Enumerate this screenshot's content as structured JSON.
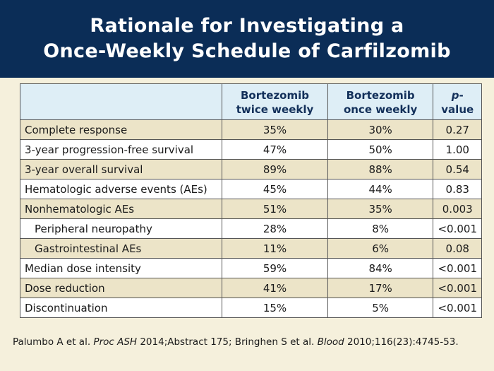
{
  "title": {
    "line1": "Rationale for Investigating a",
    "line2": "Once-Weekly Schedule of Carfilzomib"
  },
  "table": {
    "headers": {
      "col1_line1": "Bortezomib",
      "col1_line2": "twice weekly",
      "col2_line1": "Bortezomib",
      "col2_line2": "once weekly",
      "col3_italic": "p",
      "col3_rest": "-value"
    },
    "rows": [
      {
        "label": "Complete response",
        "twice": "35%",
        "once": "30%",
        "p": "0.27"
      },
      {
        "label": "3-year progression-free survival",
        "twice": "47%",
        "once": "50%",
        "p": "1.00"
      },
      {
        "label": "3-year overall survival",
        "twice": "89%",
        "once": "88%",
        "p": "0.54"
      },
      {
        "label": "Hematologic adverse events (AEs)",
        "twice": "45%",
        "once": "44%",
        "p": "0.83"
      },
      {
        "label": "Nonhematologic AEs",
        "twice": "51%",
        "once": "35%",
        "p": "0.003"
      },
      {
        "label": "Peripheral neuropathy",
        "twice": "28%",
        "once": "8%",
        "p": "<0.001"
      },
      {
        "label": "Gastrointestinal AEs",
        "twice": "11%",
        "once": "6%",
        "p": "0.08"
      },
      {
        "label": "Median dose intensity",
        "twice": "59%",
        "once": "84%",
        "p": "<0.001"
      },
      {
        "label": "Dose reduction",
        "twice": "41%",
        "once": "17%",
        "p": "<0.001"
      },
      {
        "label": "Discontinuation",
        "twice": "15%",
        "once": "5%",
        "p": "<0.001"
      }
    ]
  },
  "reference": {
    "part1": "Palumbo A et al. ",
    "journal1": "Proc ASH",
    "part2": " 2014;Abstract 175; Bringhen S et al. ",
    "journal2": "Blood",
    "part3": " 2010;116(23):4745-53."
  },
  "colors": {
    "header_bg": "#0b2d57",
    "page_bg": "#f5f0dc",
    "table_header_bg": "#deeef6",
    "row_tan": "#ece4c8",
    "row_white": "#ffffff"
  }
}
